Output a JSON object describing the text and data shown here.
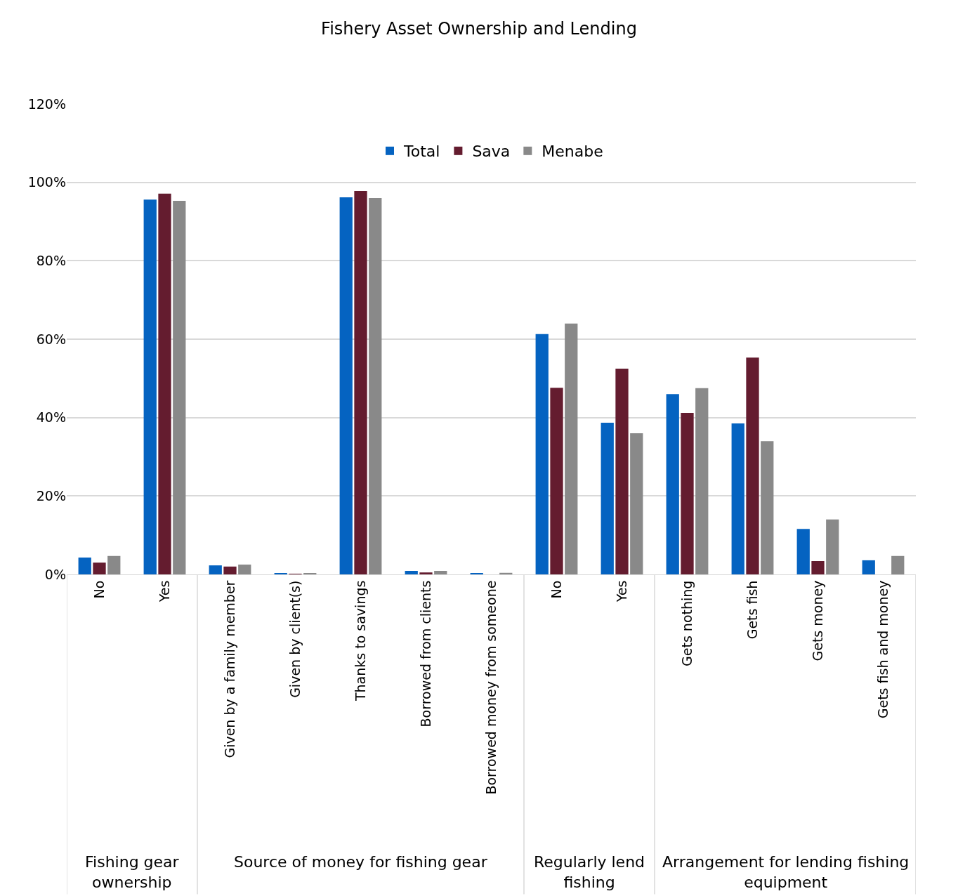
{
  "chart_data": {
    "type": "bar",
    "title": "Fishery Asset Ownership and Lending",
    "categories": [
      "No",
      "Yes",
      "Given by a family member",
      "Given by client(s)",
      "Thanks to savings",
      "Borrowed from clients",
      "Borrowed money from someone",
      "No",
      "Yes",
      "Gets nothing",
      "Gets fish",
      "Gets money",
      "Gets fish and money"
    ],
    "series": [
      {
        "name": "Total",
        "color": "#0563c1",
        "values": [
          4.3,
          95.6,
          2.3,
          0.3,
          96.2,
          0.9,
          0.3,
          61.3,
          38.7,
          46.0,
          38.5,
          11.6,
          3.6
        ]
      },
      {
        "name": "Sava",
        "color": "#641c2f",
        "values": [
          3.0,
          97.1,
          2.0,
          0.1,
          97.8,
          0.5,
          null,
          47.6,
          52.5,
          41.2,
          55.3,
          3.4,
          null
        ]
      },
      {
        "name": "Menabe",
        "color": "#898989",
        "values": [
          4.7,
          95.3,
          2.5,
          0.2,
          96.0,
          0.9,
          0.4,
          64.0,
          36.0,
          47.5,
          34.0,
          14.0,
          4.7
        ]
      }
    ],
    "annotations": [
      "Fishing gear ownership",
      "Source of money for fishing gear",
      "Regularly lend fishing",
      "Arrangement for lending fishing equipment"
    ],
    "ylim": [
      0,
      120
    ],
    "yticks": [
      {
        "value": 0,
        "label": "0%"
      },
      {
        "value": 20,
        "label": "20%"
      },
      {
        "value": 40,
        "label": "40%"
      },
      {
        "value": 60,
        "label": "60%"
      },
      {
        "value": 80,
        "label": "80%"
      },
      {
        "value": 100,
        "label": "100%"
      },
      {
        "value": 120,
        "label": "120%"
      }
    ],
    "grid": "y",
    "legend": "top"
  }
}
